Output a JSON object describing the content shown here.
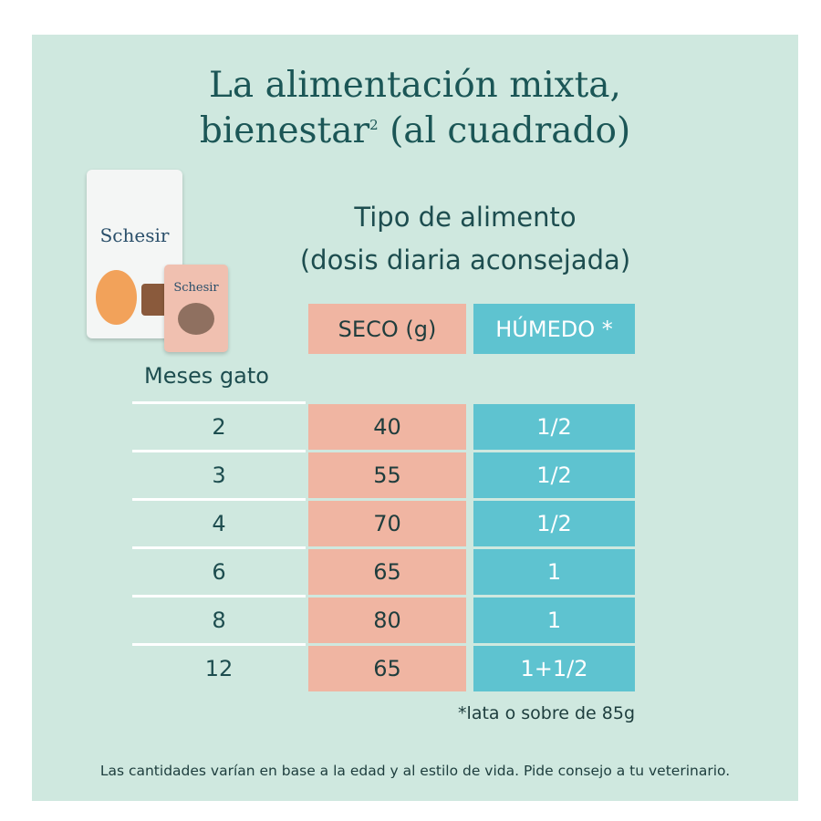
{
  "header": {
    "title_line1": "La alimentación mixta,",
    "title_line2_start": "bienestar",
    "title_superscript": "2",
    "title_line2_end": "(al cuadrado)"
  },
  "products": {
    "bag_brand": "Schesir",
    "pouch_brand": "Schesir"
  },
  "table": {
    "subtitle_line1": "Tipo de alimento",
    "subtitle_line2": "(dosis diaria aconsejada)",
    "row_header": "Meses gato",
    "columns": [
      "SECO (g)",
      "HÚMEDO *"
    ],
    "rows": [
      [
        2,
        40,
        "1/2"
      ],
      [
        3,
        55,
        "1/2"
      ],
      [
        4,
        70,
        "1/2"
      ],
      [
        6,
        65,
        "1"
      ],
      [
        8,
        80,
        "1"
      ],
      [
        12,
        65,
        "1+1/2"
      ]
    ],
    "footnote": "*lata o sobre de 85g"
  },
  "note": "Las cantidades varían en base a la edad y al estilo de vida. Pide consejo a tu veterinario."
}
